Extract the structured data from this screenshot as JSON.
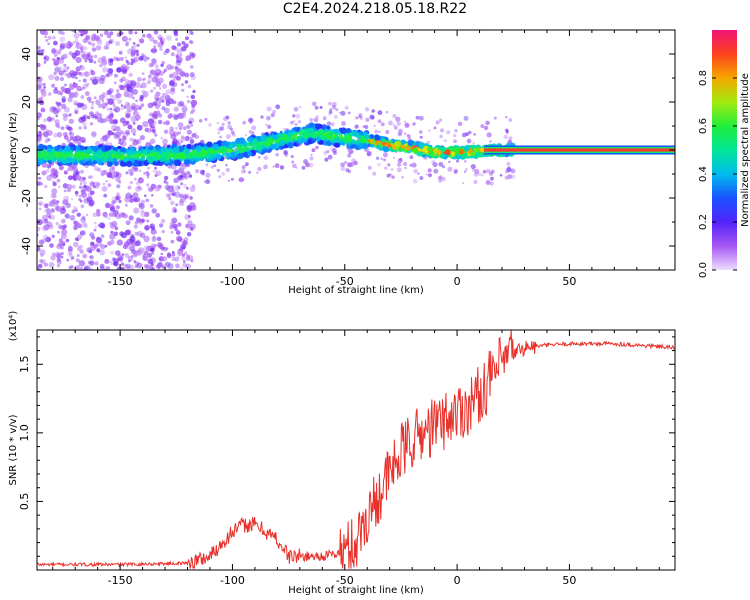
{
  "title": "C2E4.2024.218.05.18.R22",
  "chart_data": [
    {
      "type": "heatmap",
      "name": "spectrogram",
      "xlabel": "Height of straight line (km)",
      "ylabel": "Frequency (Hz)",
      "xlim": [
        -187,
        97
      ],
      "ylim": [
        -50,
        50
      ],
      "xticks": [
        -150,
        -100,
        -50,
        0,
        50
      ],
      "yticks": [
        -40,
        -20,
        0,
        20,
        40
      ],
      "xtick_labels": [
        "-150",
        "-100",
        "-50",
        "0",
        "50"
      ],
      "ytick_labels": [
        "-40",
        "-20",
        "0",
        "20",
        "40"
      ],
      "ridge": {
        "x": [
          -187,
          -150,
          -120,
          -100,
          -80,
          -65,
          -50,
          -40,
          -30,
          -20,
          -10,
          0,
          10,
          20,
          97
        ],
        "y": [
          -2,
          -2.5,
          -2,
          0,
          4,
          7,
          5,
          4,
          2,
          1,
          -1,
          -1,
          -0.5,
          0,
          0
        ]
      },
      "colorbar": {
        "label": "Normalized spectral amplitude",
        "range": [
          0,
          1
        ],
        "ticks": [
          0.0,
          0.2,
          0.4,
          0.6,
          0.8
        ],
        "tick_labels": [
          "0.0",
          "0.2",
          "0.4",
          "0.6",
          "0.8"
        ]
      }
    },
    {
      "type": "line",
      "name": "snr",
      "xlabel": "Height of straight line (km)",
      "ylabel": "SNR (10 * v/v)",
      "scale_label": "(x10⁴)",
      "xlim": [
        -187,
        97
      ],
      "ylim": [
        0,
        1.75
      ],
      "xticks": [
        -150,
        -100,
        -50,
        0,
        50
      ],
      "yticks": [
        0.5,
        1.0,
        1.5
      ],
      "xtick_labels": [
        "-150",
        "-100",
        "-50",
        "0",
        "50"
      ],
      "ytick_labels": [
        "0.5",
        "1.0",
        "1.5"
      ],
      "color": "#e8312b",
      "x": [
        -187,
        -150,
        -120,
        -110,
        -100,
        -95,
        -90,
        -85,
        -80,
        -75,
        -70,
        -60,
        -50,
        -45,
        -40,
        -35,
        -30,
        -25,
        -20,
        -15,
        -10,
        -5,
        0,
        5,
        10,
        15,
        20,
        25,
        30,
        40,
        50,
        60,
        70,
        80,
        97
      ],
      "values": [
        0.04,
        0.04,
        0.05,
        0.1,
        0.28,
        0.33,
        0.33,
        0.28,
        0.22,
        0.1,
        0.1,
        0.1,
        0.13,
        0.2,
        0.4,
        0.55,
        0.7,
        0.85,
        0.95,
        1.0,
        1.05,
        1.1,
        1.15,
        1.2,
        1.28,
        1.4,
        1.5,
        1.58,
        1.62,
        1.64,
        1.65,
        1.65,
        1.65,
        1.64,
        1.62
      ]
    }
  ]
}
